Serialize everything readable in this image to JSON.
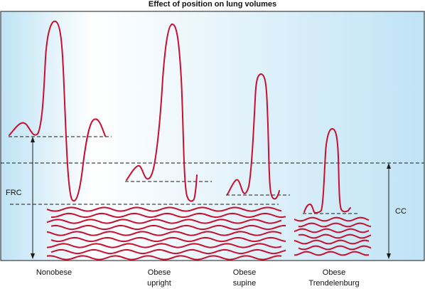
{
  "title": "Effect of position on lung volumes",
  "labels": {
    "frc": "FRC",
    "cc": "CC"
  },
  "positions": [
    {
      "line1": "Nonobese",
      "line2": ""
    },
    {
      "line1": "Obese",
      "line2": "upright"
    },
    {
      "line1": "Obese",
      "line2": "supine"
    },
    {
      "line1": "Obese",
      "line2": "Trendelenburg"
    }
  ],
  "colors": {
    "trace": "#c8102e",
    "panel_edge": "#bfe3f5",
    "panel_center": "#ffffff",
    "border": "#1a1a1a"
  }
}
